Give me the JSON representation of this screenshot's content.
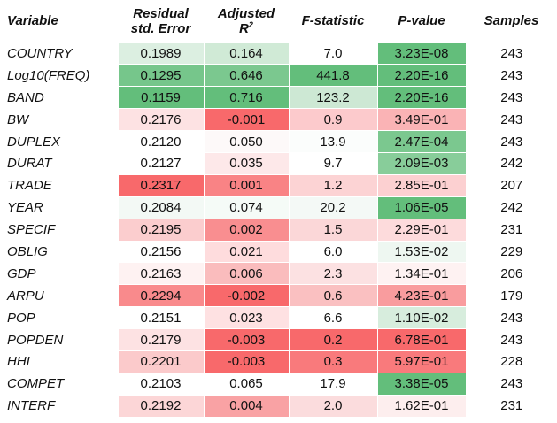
{
  "headers": {
    "variable": "Variable",
    "residual_line1": "Residual",
    "residual_line2": "std. Error",
    "adjusted_line1": "Adjusted",
    "adjusted_line2": "R",
    "adjusted_sup": "2",
    "fstat": "F-statistic",
    "pvalue": "P-value",
    "samples": "Samples"
  },
  "colors": {
    "green_strong": "#63be7b",
    "white": "#ffffff",
    "red_strong": "#f8696b"
  },
  "rows": [
    {
      "variable": "COUNTRY",
      "residual": "0.1989",
      "adjusted": "0.164",
      "fstat": "7.0",
      "pvalue": "3.23E-08",
      "samples": "243",
      "bg": [
        "#dcefe1",
        "#d0ead6",
        "#ffffff",
        "#63be7b",
        "#ffffff"
      ]
    },
    {
      "variable": "Log10(FREQ)",
      "residual": "0.1295",
      "adjusted": "0.646",
      "fstat": "441.8",
      "pvalue": "2.20E-16",
      "samples": "243",
      "bg": [
        "#76c68b",
        "#7bc88f",
        "#63be7b",
        "#63be7b",
        "#ffffff"
      ]
    },
    {
      "variable": "BAND",
      "residual": "0.1159",
      "adjusted": "0.716",
      "fstat": "123.2",
      "pvalue": "2.20E-16",
      "samples": "243",
      "bg": [
        "#63be7b",
        "#63be7b",
        "#cde8d4",
        "#63be7b",
        "#ffffff"
      ]
    },
    {
      "variable": "BW",
      "residual": "0.2176",
      "adjusted": "-0.001",
      "fstat": "0.9",
      "pvalue": "3.49E-01",
      "samples": "243",
      "bg": [
        "#fde2e3",
        "#f8696b",
        "#fccacc",
        "#fab3b5",
        "#ffffff"
      ]
    },
    {
      "variable": "DUPLEX",
      "residual": "0.2120",
      "adjusted": "0.050",
      "fstat": "13.9",
      "pvalue": "2.47E-04",
      "samples": "243",
      "bg": [
        "#ffffff",
        "#fdf9f9",
        "#fbfdfc",
        "#7bc88f",
        "#ffffff"
      ]
    },
    {
      "variable": "DURAT",
      "residual": "0.2127",
      "adjusted": "0.035",
      "fstat": "9.7",
      "pvalue": "2.09E-03",
      "samples": "242",
      "bg": [
        "#ffffff",
        "#fde8e9",
        "#ffffff",
        "#88cd9a",
        "#ffffff"
      ]
    },
    {
      "variable": "TRADE",
      "residual": "0.2317",
      "adjusted": "0.001",
      "fstat": "1.2",
      "pvalue": "2.85E-01",
      "samples": "207",
      "bg": [
        "#f8696b",
        "#f98385",
        "#fcd3d4",
        "#fcd0d1",
        "#ffffff"
      ]
    },
    {
      "variable": "YEAR",
      "residual": "0.2084",
      "adjusted": "0.074",
      "fstat": "20.2",
      "pvalue": "1.06E-05",
      "samples": "242",
      "bg": [
        "#f3f9f5",
        "#f5fbf7",
        "#f4f9f6",
        "#63be7b",
        "#ffffff"
      ]
    },
    {
      "variable": "SPECIF",
      "residual": "0.2195",
      "adjusted": "0.002",
      "fstat": "1.5",
      "pvalue": "2.29E-01",
      "samples": "231",
      "bg": [
        "#fbcdce",
        "#f98e90",
        "#fbd7d8",
        "#fddbdc",
        "#ffffff"
      ]
    },
    {
      "variable": "OBLIG",
      "residual": "0.2156",
      "adjusted": "0.021",
      "fstat": "6.0",
      "pvalue": "1.53E-02",
      "samples": "229",
      "bg": [
        "#ffffff",
        "#fedcdd",
        "#ffffff",
        "#eef7f1",
        "#ffffff"
      ]
    },
    {
      "variable": "GDP",
      "residual": "0.2163",
      "adjusted": "0.006",
      "fstat": "2.3",
      "pvalue": "1.34E-01",
      "samples": "206",
      "bg": [
        "#fef2f2",
        "#fabcbd",
        "#fce1e2",
        "#fef2f2",
        "#ffffff"
      ]
    },
    {
      "variable": "ARPU",
      "residual": "0.2294",
      "adjusted": "-0.002",
      "fstat": "0.6",
      "pvalue": "4.23E-01",
      "samples": "179",
      "bg": [
        "#f98a8c",
        "#f8696b",
        "#fac0c1",
        "#f99c9e",
        "#ffffff"
      ]
    },
    {
      "variable": "POP",
      "residual": "0.2151",
      "adjusted": "0.023",
      "fstat": "6.6",
      "pvalue": "1.10E-02",
      "samples": "243",
      "bg": [
        "#ffffff",
        "#fee1e2",
        "#ffffff",
        "#d7eddd",
        "#ffffff"
      ]
    },
    {
      "variable": "POPDEN",
      "residual": "0.2179",
      "adjusted": "-0.003",
      "fstat": "0.2",
      "pvalue": "6.78E-01",
      "samples": "243",
      "bg": [
        "#fde2e3",
        "#f8696b",
        "#f8696b",
        "#f8696b",
        "#ffffff"
      ]
    },
    {
      "variable": "HHI",
      "residual": "0.2201",
      "adjusted": "-0.003",
      "fstat": "0.3",
      "pvalue": "5.97E-01",
      "samples": "228",
      "bg": [
        "#fbcacb",
        "#f8696b",
        "#f97a7c",
        "#f97a7c",
        "#ffffff"
      ]
    },
    {
      "variable": "COMPET",
      "residual": "0.2103",
      "adjusted": "0.065",
      "fstat": "17.9",
      "pvalue": "3.38E-05",
      "samples": "243",
      "bg": [
        "#ffffff",
        "#ffffff",
        "#ffffff",
        "#63be7b",
        "#ffffff"
      ]
    },
    {
      "variable": "INTERF",
      "residual": "0.2192",
      "adjusted": "0.004",
      "fstat": "2.0",
      "pvalue": "1.62E-01",
      "samples": "231",
      "bg": [
        "#fcd6d7",
        "#f9a2a4",
        "#fbdcdd",
        "#fdeeee",
        "#ffffff"
      ]
    }
  ]
}
